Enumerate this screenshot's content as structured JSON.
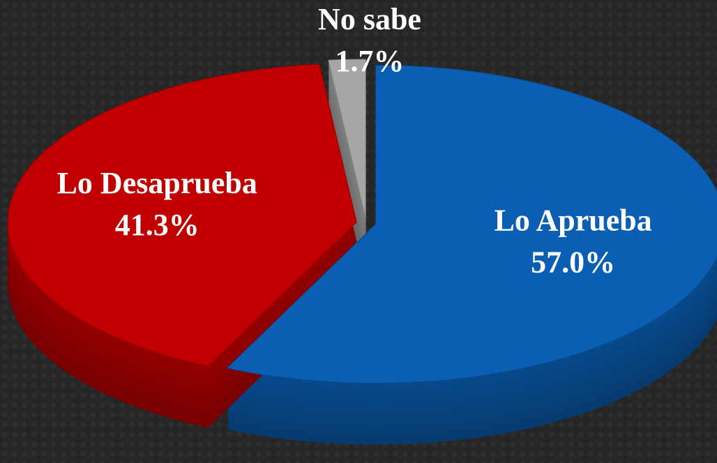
{
  "chart_data": {
    "type": "pie",
    "categories": [
      "Lo Aprueba",
      "Lo Desaprueba",
      "No sabe"
    ],
    "values": [
      57.0,
      41.3,
      1.7
    ],
    "value_labels": [
      "57.0%",
      "41.3%",
      "1.7%"
    ],
    "colors": [
      "#0a5fb4",
      "#c00000",
      "#a6a6a6"
    ]
  }
}
